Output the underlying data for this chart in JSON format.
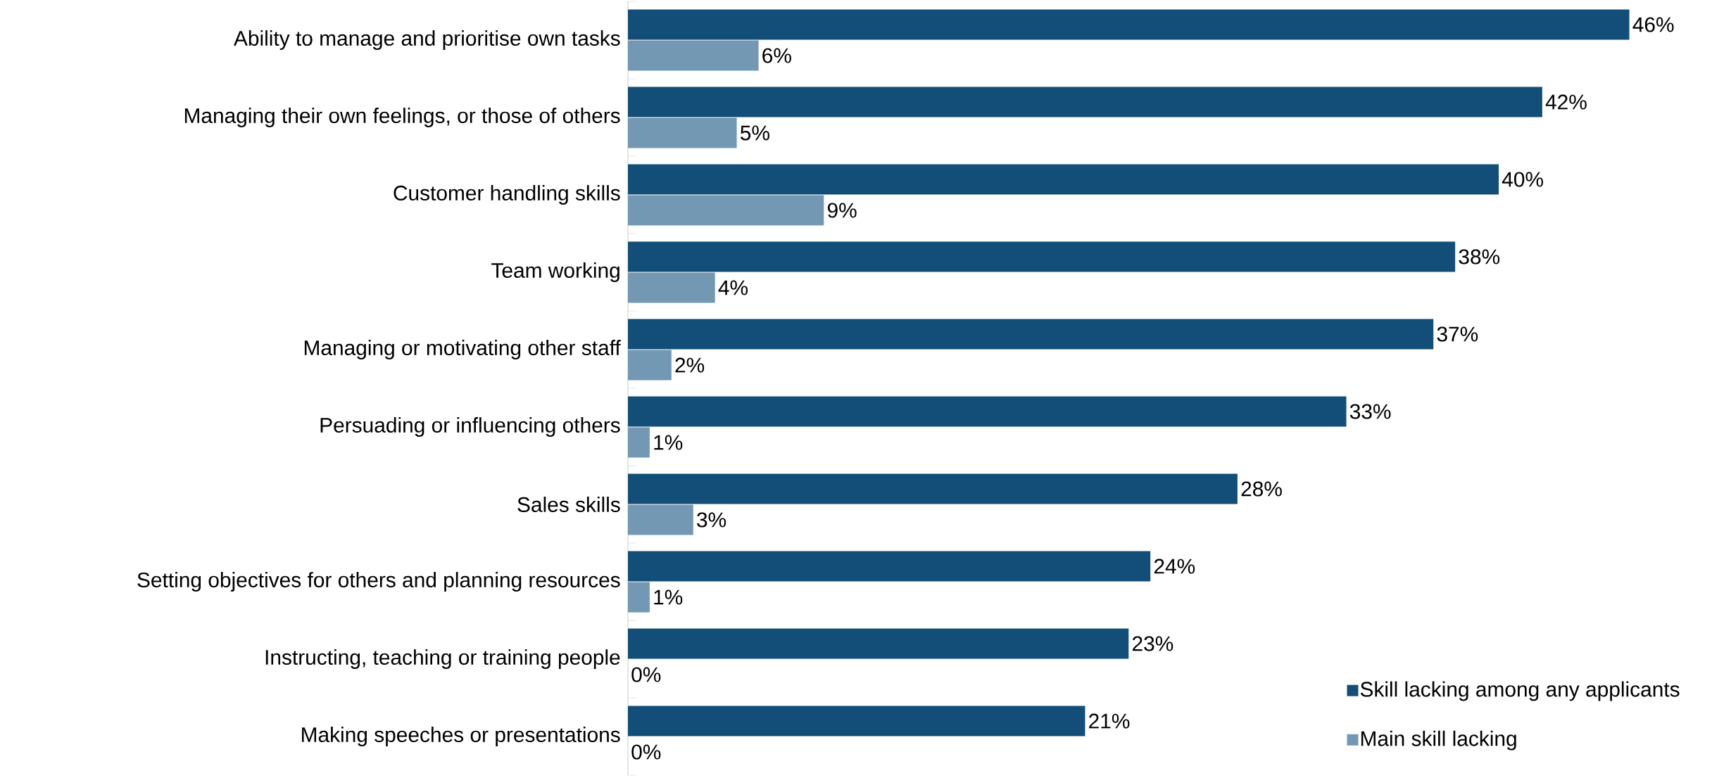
{
  "chart_data": {
    "type": "bar",
    "orientation": "horizontal",
    "legend": "bottom right",
    "categories": [
      "Ability to manage and prioritise own tasks",
      "Managing their own feelings, or those of others",
      "Customer handling skills",
      "Team working",
      "Managing or motivating other staff",
      "Persuading or influencing others",
      "Sales skills",
      "Setting objectives for others and planning resources",
      "Instructing, teaching or training people",
      "Making speeches or presentations"
    ],
    "series": [
      {
        "name": "Skill lacking among any applicants",
        "color": "#124e78",
        "values": [
          46,
          42,
          40,
          38,
          37,
          33,
          28,
          24,
          23,
          21
        ],
        "value_labels": [
          "46%",
          "42%",
          "40%",
          "38%",
          "37%",
          "33%",
          "28%",
          "24%",
          "23%",
          "21%"
        ]
      },
      {
        "name": "Main skill lacking",
        "color": "#7298b4",
        "values": [
          6,
          5,
          9,
          4,
          2,
          1,
          3,
          1,
          0,
          0
        ],
        "value_labels": [
          "6%",
          "5%",
          "9%",
          "4%",
          "2%",
          "1%",
          "3%",
          "1%",
          "0%",
          "0%"
        ]
      }
    ]
  }
}
